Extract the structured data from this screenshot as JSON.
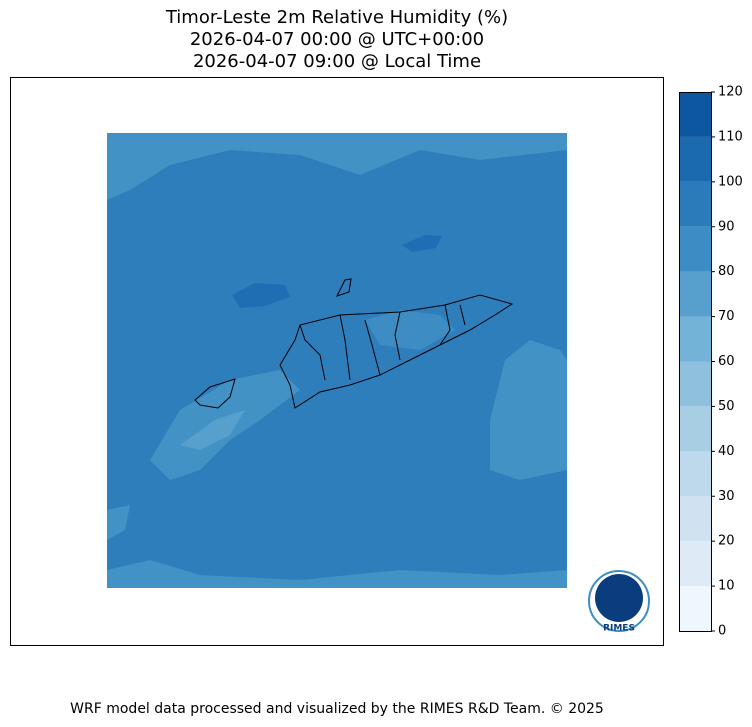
{
  "title": [
    "Timor-Leste 2m Relative Humidity (%)",
    "2026-04-07 00:00 @ UTC+00:00",
    "2026-04-07 09:00 @ Local Time"
  ],
  "colorbar": {
    "ticks": [
      0,
      10,
      20,
      30,
      40,
      50,
      60,
      70,
      80,
      90,
      100,
      110,
      120
    ],
    "colors": [
      "#f0f6fd",
      "#deebf7",
      "#d0e1f2",
      "#bed8ec",
      "#a8cee4",
      "#8fc1de",
      "#73b3d8",
      "#57a0ce",
      "#3d8dc4",
      "#2b7bba",
      "#1b69af",
      "#0d56a0",
      "#0b3d7e"
    ]
  },
  "logo": "RIMES",
  "footer": "WRF model data processed and visualized by the RIMES R&D Team. © 2025"
}
